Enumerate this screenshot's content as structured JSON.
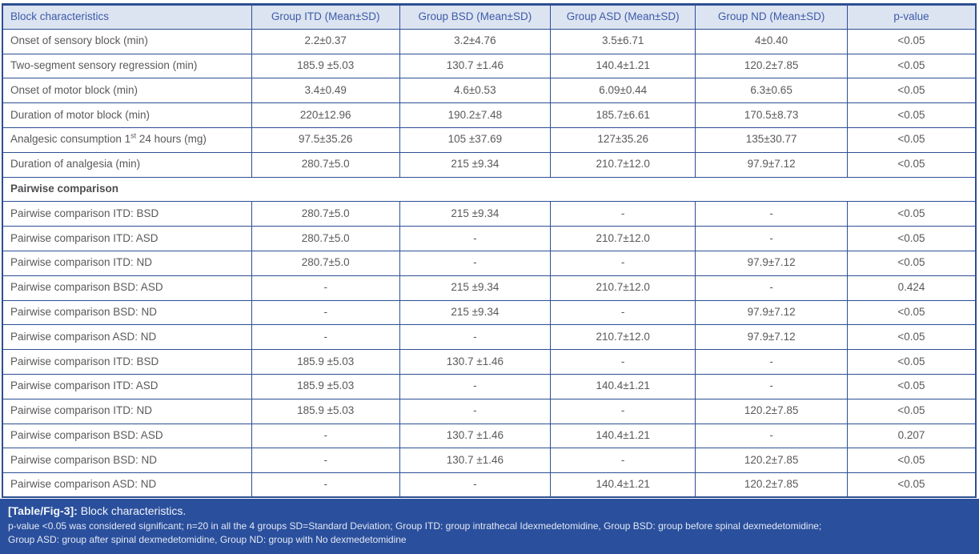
{
  "colors": {
    "border": "#2c4f93",
    "header_bg": "#dde4f1",
    "header_text": "#3c5ba9",
    "body_text": "#58595b",
    "footer_bg": "#2a4f9c",
    "footer_text": "#f4f6fb"
  },
  "table": {
    "columns": [
      "Block characteristics",
      "Group ITD (Mean±SD)",
      "Group BSD (Mean±SD)",
      "Group ASD (Mean±SD)",
      "Group ND (Mean±SD)",
      "p-value"
    ],
    "rows": [
      {
        "label": "Onset of sensory block (min)",
        "values": [
          "2.2±0.37",
          "3.2±4.76",
          "3.5±6.71",
          "4±0.40",
          "<0.05"
        ]
      },
      {
        "label": "Two-segment sensory regression (min)",
        "values": [
          "185.9 ±5.03",
          "130.7 ±1.46",
          "140.4±1.21",
          "120.2±7.85",
          "<0.05"
        ]
      },
      {
        "label": "Onset of motor block (min)",
        "values": [
          "3.4±0.49",
          "4.6±0.53",
          "6.09±0.44",
          "6.3±0.65",
          "<0.05"
        ]
      },
      {
        "label": "Duration of motor block (min)",
        "values": [
          "220±12.96",
          "190.2±7.48",
          "185.7±6.61",
          "170.5±8.73",
          "<0.05"
        ]
      },
      {
        "label": "Analgesic consumption 1",
        "sup": "st",
        "label_after": " 24 hours (mg)",
        "values": [
          "97.5±35.26",
          "105 ±37.69",
          "127±35.26",
          "135±30.77",
          "<0.05"
        ]
      },
      {
        "label": "Duration of analgesia (min)",
        "values": [
          "280.7±5.0",
          "215 ±9.34",
          "210.7±12.0",
          "97.9±7.12",
          "<0.05"
        ]
      },
      {
        "section": "Pairwise comparison"
      },
      {
        "label": "Pairwise comparison ITD: BSD",
        "values": [
          "280.7±5.0",
          "215 ±9.34",
          "-",
          "-",
          "<0.05"
        ]
      },
      {
        "label": "Pairwise comparison ITD: ASD",
        "values": [
          "280.7±5.0",
          "-",
          "210.7±12.0",
          "-",
          "<0.05"
        ]
      },
      {
        "label": "Pairwise comparison ITD: ND",
        "values": [
          "280.7±5.0",
          "-",
          "-",
          "97.9±7.12",
          "<0.05"
        ]
      },
      {
        "label": "Pairwise comparison BSD: ASD",
        "values": [
          "-",
          "215 ±9.34",
          "210.7±12.0",
          "-",
          "0.424"
        ]
      },
      {
        "label": "Pairwise comparison BSD: ND",
        "values": [
          "-",
          "215 ±9.34",
          "-",
          "97.9±7.12",
          "<0.05"
        ]
      },
      {
        "label": "Pairwise comparison ASD: ND",
        "values": [
          "-",
          "-",
          "210.7±12.0",
          "97.9±7.12",
          "<0.05"
        ]
      },
      {
        "label": "Pairwise comparison ITD: BSD",
        "values": [
          "185.9 ±5.03",
          "130.7 ±1.46",
          "-",
          "-",
          "<0.05"
        ]
      },
      {
        "label": "Pairwise comparison ITD: ASD",
        "values": [
          "185.9 ±5.03",
          "-",
          "140.4±1.21",
          "-",
          "<0.05"
        ]
      },
      {
        "label": "Pairwise comparison ITD: ND",
        "values": [
          "185.9 ±5.03",
          "-",
          "-",
          "120.2±7.85",
          "<0.05"
        ]
      },
      {
        "label": "Pairwise comparison BSD: ASD",
        "values": [
          "-",
          "130.7 ±1.46",
          "140.4±1.21",
          "-",
          "0.207"
        ]
      },
      {
        "label": "Pairwise comparison BSD: ND",
        "values": [
          "-",
          "130.7 ±1.46",
          "-",
          "120.2±7.85",
          "<0.05"
        ]
      },
      {
        "label": "Pairwise comparison ASD: ND",
        "values": [
          "-",
          "-",
          "140.4±1.21",
          "120.2±7.85",
          "<0.05"
        ]
      }
    ]
  },
  "footer": {
    "tag": "[Table/Fig-3]:",
    "title": " Block characteristics.",
    "note_line1": "p-value <0.05 was considered significant; n=20 in all the 4 groups SD=Standard Deviation; Group ITD: group intrathecal Idexmedetomidine, Group BSD: group before spinal dexmedetomidine;",
    "note_line2": "Group ASD: group after spinal dexmedetomidine, Group ND: group with No dexmedetomidine"
  }
}
